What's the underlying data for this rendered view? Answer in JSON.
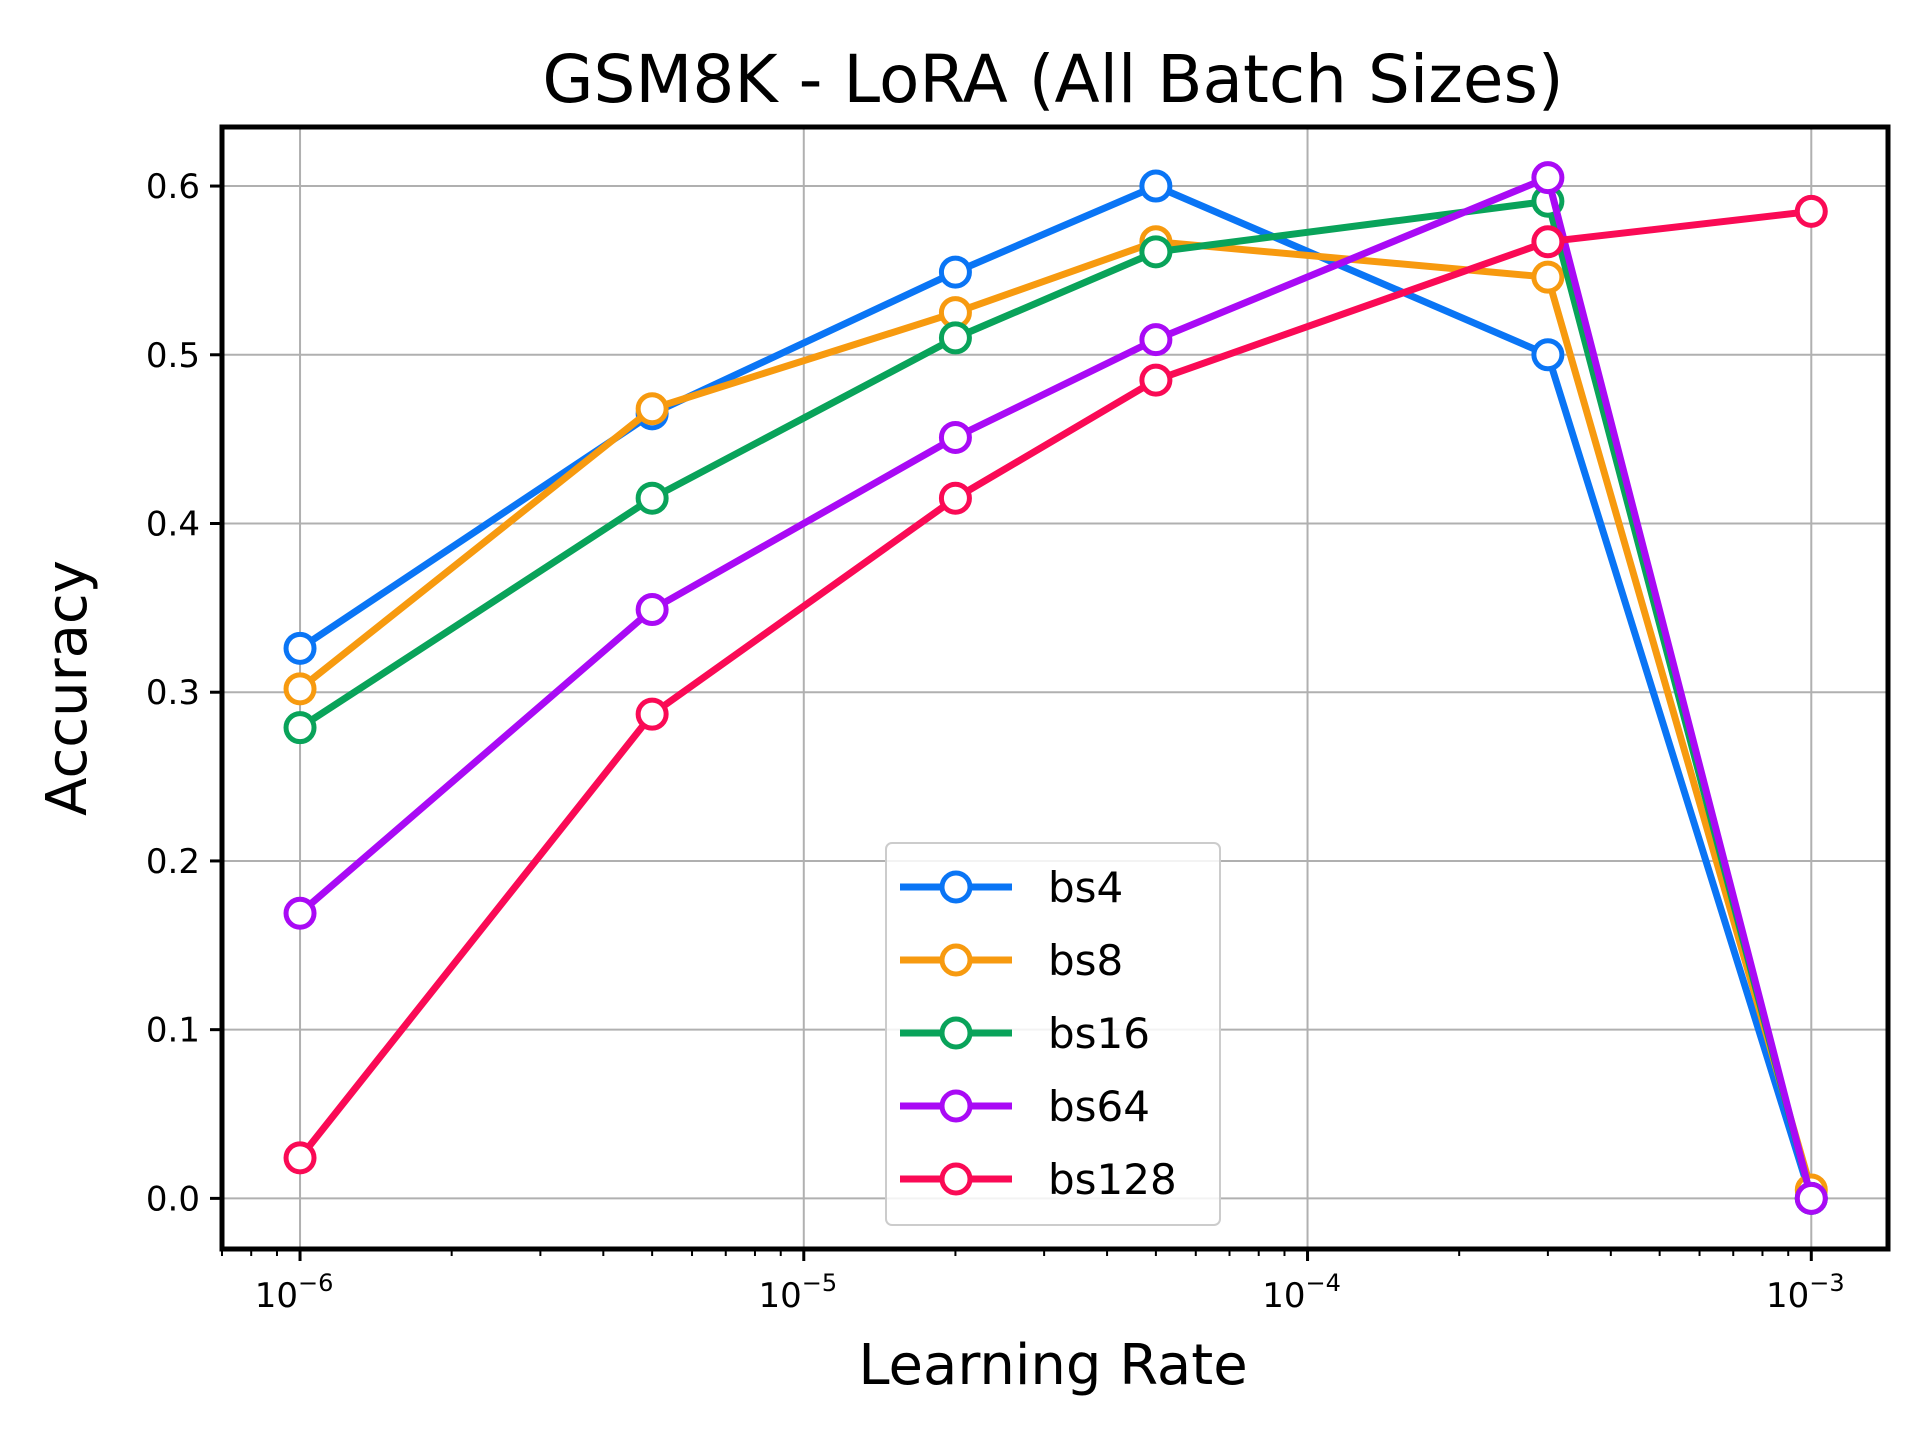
{
  "chart_data": {
    "type": "line",
    "title": "GSM8K - LoRA (All Batch Sizes)",
    "xlabel": "Learning Rate",
    "ylabel": "Accuracy",
    "xscale": "log",
    "xlim": [
      7e-07,
      0.00142
    ],
    "ylim": [
      -0.03,
      0.635
    ],
    "x": [
      1e-06,
      5e-06,
      2e-05,
      5e-05,
      0.0003,
      0.001
    ],
    "x_ticks": [
      {
        "value": 1e-06,
        "base": "10",
        "exp": "−6"
      },
      {
        "value": 1e-05,
        "base": "10",
        "exp": "−5"
      },
      {
        "value": 0.0001,
        "base": "10",
        "exp": "−4"
      },
      {
        "value": 0.001,
        "base": "10",
        "exp": "−3"
      }
    ],
    "y_ticks": [
      {
        "value": 0.0,
        "label": "0.0"
      },
      {
        "value": 0.1,
        "label": "0.1"
      },
      {
        "value": 0.2,
        "label": "0.2"
      },
      {
        "value": 0.3,
        "label": "0.3"
      },
      {
        "value": 0.4,
        "label": "0.4"
      },
      {
        "value": 0.5,
        "label": "0.5"
      },
      {
        "value": 0.6,
        "label": "0.6"
      }
    ],
    "grid": true,
    "legend_position": "bottom-center",
    "series": [
      {
        "name": "bs4",
        "color": "#0A75F5",
        "values": [
          0.326,
          0.465,
          0.549,
          0.6,
          0.5,
          0.0
        ]
      },
      {
        "name": "bs8",
        "color": "#F79A0F",
        "values": [
          0.302,
          0.468,
          0.525,
          0.567,
          0.546,
          0.005
        ]
      },
      {
        "name": "bs16",
        "color": "#09A35A",
        "values": [
          0.279,
          0.415,
          0.51,
          0.561,
          0.591,
          0.0
        ]
      },
      {
        "name": "bs64",
        "color": "#A90AF5",
        "values": [
          0.169,
          0.349,
          0.451,
          0.509,
          0.605,
          0.0
        ]
      },
      {
        "name": "bs128",
        "color": "#FA0A55",
        "values": [
          0.024,
          0.287,
          0.415,
          0.485,
          0.567,
          0.585
        ]
      }
    ]
  }
}
